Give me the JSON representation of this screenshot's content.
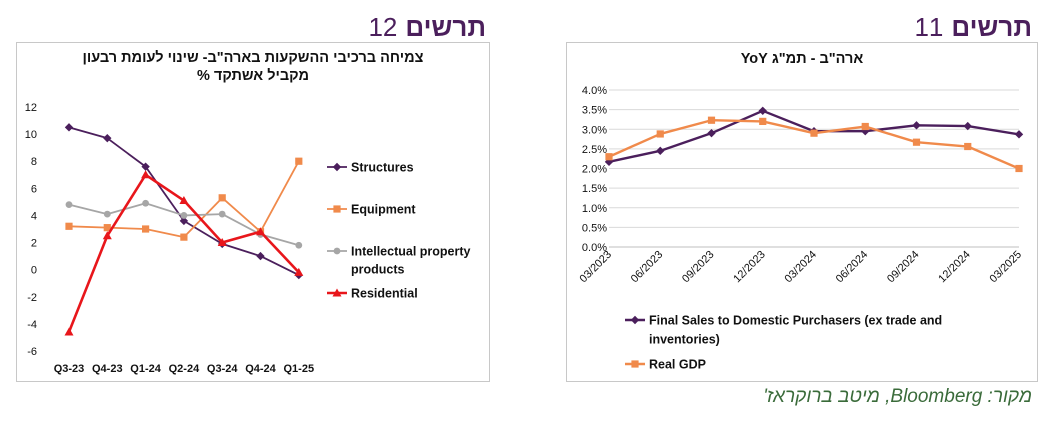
{
  "headings": {
    "left": {
      "word": "תרשים",
      "number": "12"
    },
    "right": {
      "word": "תרשים",
      "number": "11"
    }
  },
  "source": "מקור: Bloomberg, מיטב ברוקראז'",
  "colors": {
    "purple": "#4b1f5c",
    "orange": "#f08a4b",
    "gray": "#a6a6a6",
    "red": "#e8161b",
    "grid": "#d9d9d9"
  },
  "chart_data": [
    {
      "id": "chart12",
      "type": "line",
      "title_lines": [
        "צמיחה ברכיבי ההשקעות בארה\"ב- שינוי לעומת רבעון",
        "מקביל אשתקד %"
      ],
      "categories": [
        "Q3-23",
        "Q4-23",
        "Q1-24",
        "Q2-24",
        "Q3-24",
        "Q4-24",
        "Q1-25"
      ],
      "y_ticks": [
        12,
        10,
        8,
        6,
        4,
        2,
        0,
        -2,
        -4,
        -6
      ],
      "ylim": [
        -6,
        12
      ],
      "grid": false,
      "legend_position": "right",
      "series": [
        {
          "name": "Structures",
          "color": "#4b1f5c",
          "marker": "diamond",
          "values": [
            10.5,
            9.7,
            7.6,
            3.6,
            1.9,
            1.0,
            -0.4
          ]
        },
        {
          "name": "Equipment",
          "color": "#f08a4b",
          "marker": "square",
          "values": [
            3.2,
            3.1,
            3.0,
            2.4,
            5.3,
            2.8,
            8.0
          ]
        },
        {
          "name": "Intellectual property products",
          "legend_lines": [
            "Intellectual property",
            "products"
          ],
          "color": "#a6a6a6",
          "marker": "circle",
          "values": [
            4.8,
            4.1,
            4.9,
            4.0,
            4.1,
            2.6,
            1.8
          ]
        },
        {
          "name": "Residential",
          "color": "#e8161b",
          "marker": "triangle",
          "values": [
            -4.6,
            2.5,
            7.0,
            5.1,
            2.0,
            2.8,
            -0.2
          ]
        }
      ]
    },
    {
      "id": "chart11",
      "type": "line",
      "title": "ארה\"ב - תמ\"ג YoY",
      "categories": [
        "03/2023",
        "06/2023",
        "09/2023",
        "12/2023",
        "03/2024",
        "06/2024",
        "09/2024",
        "12/2024",
        "03/2025"
      ],
      "y_ticks": [
        "4.0%",
        "3.5%",
        "3.0%",
        "2.5%",
        "2.0%",
        "1.5%",
        "1.0%",
        "0.5%",
        "0.0%"
      ],
      "ylim": [
        0,
        4.0
      ],
      "grid": true,
      "legend_position": "bottom",
      "series": [
        {
          "name": "Final Sales to Domestic Purchasers (ex trade and inventories)",
          "legend_lines": [
            "Final Sales to Domestic Purchasers (ex trade and",
            "inventories)"
          ],
          "color": "#4b1f5c",
          "marker": "diamond",
          "values": [
            2.17,
            2.45,
            2.9,
            3.47,
            2.95,
            2.95,
            3.1,
            3.08,
            2.87
          ]
        },
        {
          "name": "Real GDP",
          "color": "#f08a4b",
          "marker": "square",
          "values": [
            2.3,
            2.88,
            3.23,
            3.2,
            2.9,
            3.07,
            2.67,
            2.56,
            2.0
          ]
        }
      ]
    }
  ]
}
